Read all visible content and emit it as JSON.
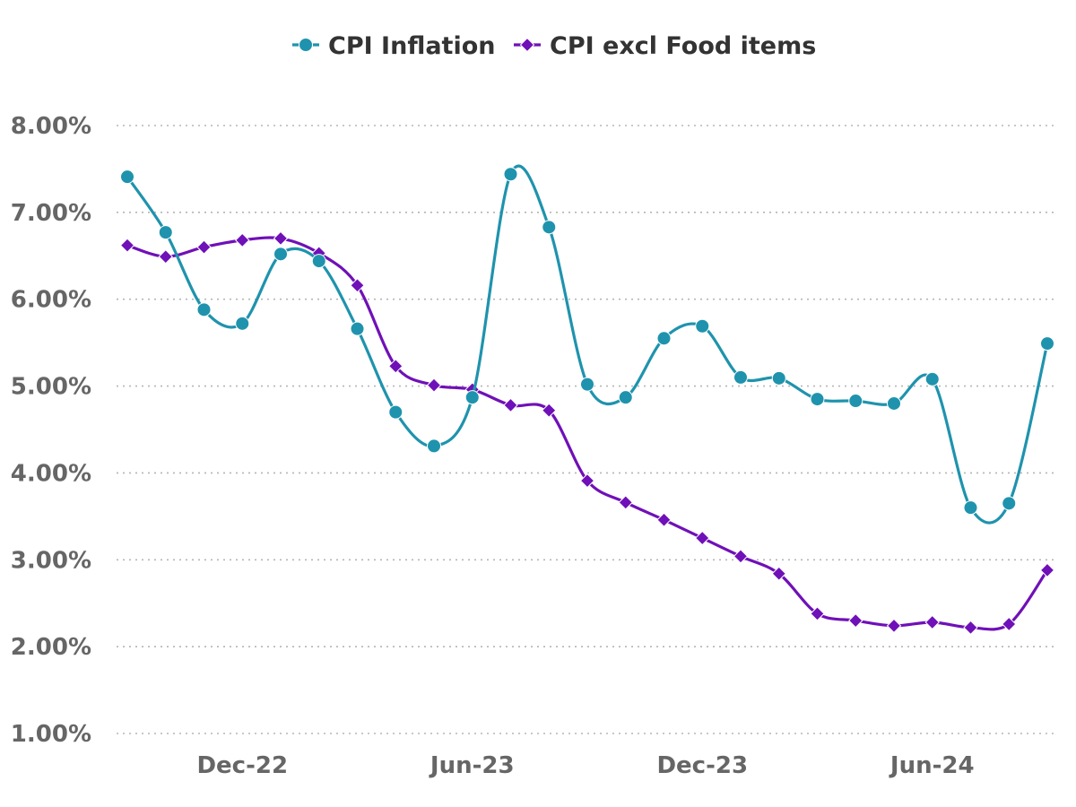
{
  "chart_data": {
    "type": "line",
    "x": [
      "Sep-22",
      "Oct-22",
      "Nov-22",
      "Dec-22",
      "Jan-23",
      "Feb-23",
      "Mar-23",
      "Apr-23",
      "May-23",
      "Jun-23",
      "Jul-23",
      "Aug-23",
      "Sep-23",
      "Oct-23",
      "Nov-23",
      "Dec-23",
      "Jan-24",
      "Feb-24",
      "Mar-24",
      "Apr-24",
      "May-24",
      "Jun-24",
      "Jul-24",
      "Aug-24",
      "Sep-24"
    ],
    "x_tick_labels": [
      {
        "index": 3,
        "label": "Dec-22"
      },
      {
        "index": 9,
        "label": "Jun-23"
      },
      {
        "index": 15,
        "label": "Dec-23"
      },
      {
        "index": 21,
        "label": "Jun-24"
      }
    ],
    "series": [
      {
        "name": "CPI Inflation",
        "color": "#1f93ad",
        "marker": "circle",
        "values": [
          7.41,
          6.77,
          5.88,
          5.72,
          6.52,
          6.44,
          5.66,
          4.7,
          4.31,
          4.87,
          7.44,
          6.83,
          5.02,
          4.87,
          5.55,
          5.69,
          5.1,
          5.09,
          4.85,
          4.83,
          4.8,
          5.08,
          3.6,
          3.65,
          5.49
        ]
      },
      {
        "name": "CPI excl Food items",
        "color": "#7010b8",
        "marker": "diamond",
        "values": [
          6.62,
          6.49,
          6.6,
          6.68,
          6.7,
          6.53,
          6.16,
          5.23,
          5.01,
          4.96,
          4.78,
          4.72,
          3.91,
          3.66,
          3.46,
          3.25,
          3.04,
          2.84,
          2.38,
          2.3,
          2.24,
          2.28,
          2.22,
          2.26,
          2.88
        ]
      }
    ],
    "y_ticks": [
      "1.00%",
      "2.00%",
      "3.00%",
      "4.00%",
      "5.00%",
      "6.00%",
      "7.00%",
      "8.00%"
    ],
    "ylim": [
      1,
      8
    ],
    "title": "",
    "xlabel": "",
    "ylabel": "",
    "grid": true,
    "legend_position": "top-center"
  }
}
